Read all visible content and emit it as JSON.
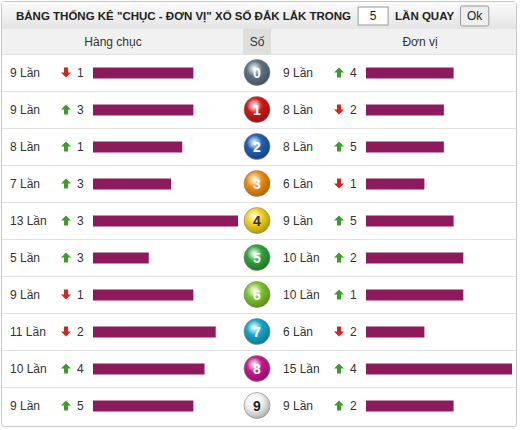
{
  "chart_data": {
    "type": "bar",
    "orientation": "horizontal",
    "title": "BẢNG THỐNG KÊ \"CHỤC - ĐƠN VỊ\" XỔ SỐ ĐẮK LẮK TRONG",
    "draws": 5,
    "draws_label": "LẦN QUAY",
    "button": "Ok",
    "category_label": "Số",
    "categories": [
      "0",
      "1",
      "2",
      "3",
      "4",
      "5",
      "6",
      "7",
      "8",
      "9"
    ],
    "data_labels": true,
    "series": [
      {
        "name": "Hàng chục",
        "color": "#8e1a5e",
        "values": [
          9,
          9,
          8,
          7,
          13,
          5,
          9,
          11,
          10,
          9
        ],
        "value_labels": [
          "9 Lần",
          "9 Lần",
          "8 Lần",
          "7 Lần",
          "13 Lần",
          "5 Lần",
          "9 Lần",
          "11 Lần",
          "10 Lần",
          "9 Lần"
        ],
        "changes": [
          {
            "value": 1,
            "direction": "down"
          },
          {
            "value": 3,
            "direction": "up"
          },
          {
            "value": 1,
            "direction": "up"
          },
          {
            "value": 3,
            "direction": "up"
          },
          {
            "value": 3,
            "direction": "up"
          },
          {
            "value": 3,
            "direction": "up"
          },
          {
            "value": 1,
            "direction": "down"
          },
          {
            "value": 2,
            "direction": "down"
          },
          {
            "value": 4,
            "direction": "up"
          },
          {
            "value": 5,
            "direction": "up"
          }
        ]
      },
      {
        "name": "Đơn vị",
        "color": "#8e1a5e",
        "values": [
          9,
          8,
          8,
          6,
          9,
          10,
          10,
          6,
          15,
          9
        ],
        "value_labels": [
          "9 Lần",
          "8 Lần",
          "8 Lần",
          "6 Lần",
          "9 Lần",
          "10 Lần",
          "10 Lần",
          "6 Lần",
          "15 Lần",
          "9 Lần"
        ],
        "changes": [
          {
            "value": 4,
            "direction": "up"
          },
          {
            "value": 2,
            "direction": "down"
          },
          {
            "value": 5,
            "direction": "up"
          },
          {
            "value": 1,
            "direction": "down"
          },
          {
            "value": 5,
            "direction": "up"
          },
          {
            "value": 2,
            "direction": "up"
          },
          {
            "value": 1,
            "direction": "up"
          },
          {
            "value": 2,
            "direction": "down"
          },
          {
            "value": 4,
            "direction": "up"
          },
          {
            "value": 2,
            "direction": "up"
          }
        ]
      }
    ]
  }
}
